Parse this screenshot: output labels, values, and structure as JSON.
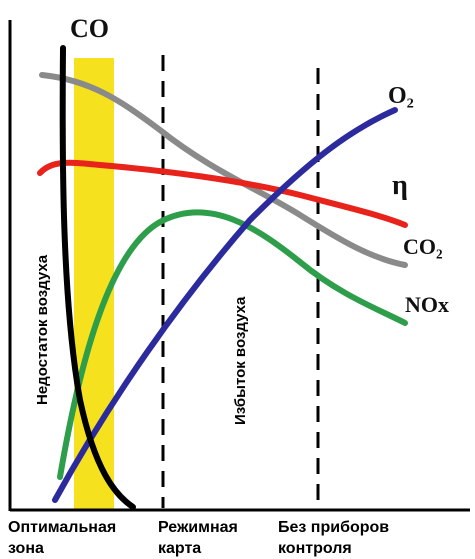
{
  "curve_labels": {
    "co": "CO",
    "o2": "O₂",
    "eta": "η",
    "co2": "CO₂",
    "nox": "NOx"
  },
  "vertical_labels": {
    "shortage": "Недостаток воздуха",
    "excess": "Избыток воздуха"
  },
  "bottom_labels": {
    "optimal_line1": "Оптимальная",
    "optimal_line2": "зона",
    "regime_line1": "Режимная",
    "regime_line2": "карта",
    "nocontrol_line1": "Без приборов",
    "nocontrol_line2": "контроля"
  },
  "colors": {
    "co": "#000000",
    "o2": "#2b2b9e",
    "eta": "#e8231c",
    "co2": "#8a8a8a",
    "nox": "#2e9e4a",
    "optimal_zone": "#f5e11e",
    "axes": "#000000"
  }
}
